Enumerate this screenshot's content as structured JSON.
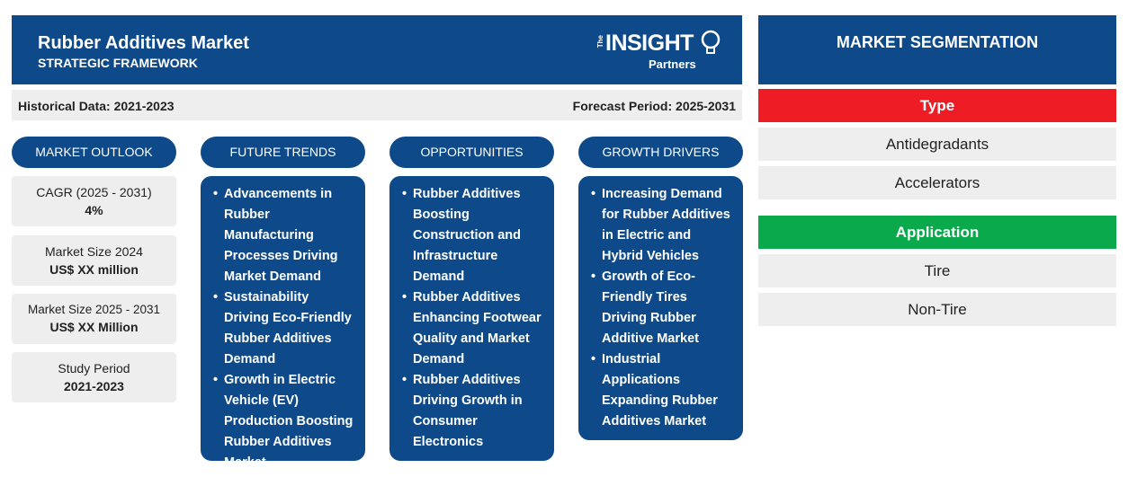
{
  "header": {
    "title": "Rubber Additives Market",
    "subtitle": "STRATEGIC FRAMEWORK",
    "logo": {
      "the": "The",
      "insight": "INSIGHT",
      "partners": "Partners"
    }
  },
  "databar": {
    "historical": "Historical Data: 2021-2023",
    "forecast": "Forecast Period: 2025-2031"
  },
  "columns": {
    "outlook": "MARKET OUTLOOK",
    "trends": "FUTURE TRENDS",
    "opportunities": "OPPORTUNITIES",
    "drivers": "GROWTH DRIVERS"
  },
  "outlook": [
    {
      "label": "CAGR (2025 - 2031)",
      "value": "4%"
    },
    {
      "label": "Market Size 2024",
      "value": "US$ XX million"
    },
    {
      "label": "Market Size 2025 - 2031",
      "value": "US$ XX Million"
    },
    {
      "label": "Study Period",
      "value": "2021-2023"
    }
  ],
  "trends": [
    "Advancements in Rubber Manufacturing Processes Driving Market Demand",
    "Sustainability Driving Eco-Friendly Rubber Additives Demand",
    "Growth in Electric Vehicle (EV) Production Boosting Rubber Additives Market"
  ],
  "opportunities": [
    "Rubber Additives Boosting Construction and Infrastructure Demand",
    "Rubber Additives Enhancing Footwear Quality and Market Demand",
    "Rubber Additives Driving Growth in Consumer Electronics"
  ],
  "drivers": [
    "Increasing Demand for Rubber Additives in Electric and Hybrid Vehicles",
    "Growth of Eco-Friendly Tires Driving Rubber Additive Market",
    "Industrial Applications Expanding Rubber Additives Market"
  ],
  "segmentation": {
    "title": "MARKET SEGMENTATION",
    "type": {
      "label": "Type",
      "color": "#ee1c25",
      "items": [
        "Antidegradants",
        "Accelerators"
      ]
    },
    "application": {
      "label": "Application",
      "color": "#0aa94b",
      "items": [
        "Tire",
        "Non-Tire"
      ]
    }
  },
  "colors": {
    "primary": "#0e4a8a",
    "panel": "#eeeeee"
  }
}
